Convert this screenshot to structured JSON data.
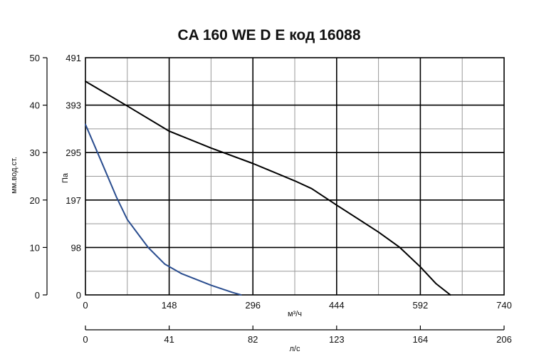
{
  "chart_data": {
    "type": "line",
    "title": "CA 160 WE D E код 16088",
    "xlabel": "м³/ч",
    "x2label": "л/с",
    "ylabel_left": "мм.вод.ст.",
    "ylabel_right": "Па",
    "xlim": [
      0,
      740
    ],
    "ylim_pa": [
      0,
      491
    ],
    "x_ticks": [
      "0",
      "148",
      "296",
      "444",
      "592",
      "740"
    ],
    "x2_ticks": [
      "0",
      "41",
      "82",
      "123",
      "164",
      "206"
    ],
    "y_ticks_left": [
      "0",
      "10",
      "20",
      "30",
      "40",
      "50"
    ],
    "y_ticks_right": [
      "0",
      "98",
      "197",
      "295",
      "393",
      "491"
    ],
    "grid": true,
    "colors": {
      "series_black": "#000000",
      "series_blue": "#2a4d8f",
      "grid_major": "#000000",
      "grid_minor": "#999999"
    },
    "series": [
      {
        "color": "#000000",
        "x": [
          0,
          74,
          148,
          222,
          296,
          370,
          400,
          444,
          518,
          555,
          592,
          620,
          645
        ],
        "y": [
          442,
          391,
          339,
          304,
          272,
          236,
          220,
          186,
          130,
          99,
          58,
          23,
          0
        ]
      },
      {
        "color": "#2a4d8f",
        "x": [
          0,
          30,
          55,
          74,
          95,
          111,
          140,
          170,
          222,
          260,
          275
        ],
        "y": [
          353,
          271,
          202,
          156,
          123,
          98,
          64,
          44,
          20,
          5,
          0
        ]
      }
    ]
  }
}
